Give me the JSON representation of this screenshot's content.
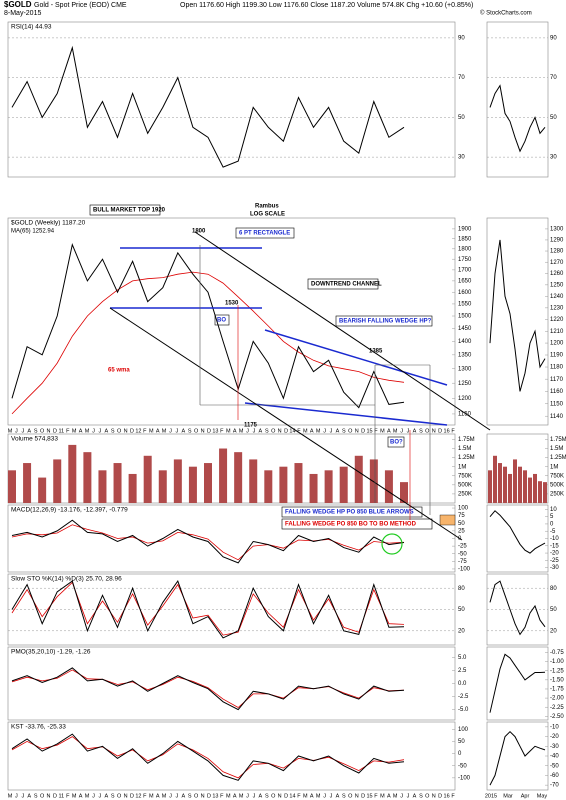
{
  "header": {
    "symbol": "$GOLD",
    "name": "Gold - Spot Price (EOD) CME",
    "date": "8-May-2015",
    "quote": "Open 1176.60  High 1199.30  Low 1176.60  Close 1187.20  Volume 574.8K  Chg +10.60 (+0.85%)",
    "credit": "© StockCharts.com"
  },
  "annotations": {
    "top": "BULL MARKET TOP 1920",
    "author": "Rambus",
    "scale": "LOG SCALE",
    "p1800": "1800",
    "rect": "6 PT RECTANGLE",
    "channel": "DOWNTREND CHANNEL",
    "p1530": "1530",
    "bo": "BO",
    "wedge": "BEARISH FALLING WEDGE HP?",
    "p1385": "1385",
    "wma": "65 wma",
    "p1175": "1175",
    "bo2": "BO?",
    "po1": "FALLING WEDGE HP PO 850 BLUE ARROWS",
    "po2": "FALLING WEDGE PO 850 BO TO BO METHOD"
  },
  "x_axis_labels": [
    "M",
    "J",
    "J",
    "A",
    "S",
    "O",
    "N",
    "D",
    "11",
    "F",
    "M",
    "A",
    "M",
    "J",
    "J",
    "A",
    "S",
    "O",
    "N",
    "D",
    "12",
    "F",
    "M",
    "A",
    "M",
    "J",
    "J",
    "A",
    "S",
    "O",
    "N",
    "D",
    "13",
    "F",
    "M",
    "A",
    "M",
    "J",
    "J",
    "A",
    "S",
    "O",
    "N",
    "D",
    "14",
    "F",
    "M",
    "A",
    "M",
    "J",
    "J",
    "A",
    "S",
    "O",
    "N",
    "D",
    "15",
    "F",
    "M",
    "A",
    "M",
    "J",
    "J",
    "A",
    "S",
    "O",
    "N",
    "D",
    "16",
    "F"
  ],
  "mini_x_labels": [
    "2015",
    "Mar",
    "Apr",
    "May"
  ],
  "chart_data": [
    {
      "type": "line",
      "label": "RSI(14) 44.93",
      "color": "#000",
      "ylim": [
        20,
        98
      ],
      "yticks": [
        90,
        70,
        50,
        30
      ],
      "grid": true,
      "values": [
        55,
        68,
        50,
        62,
        85,
        45,
        58,
        40,
        62,
        42,
        55,
        70,
        45,
        40,
        25,
        28,
        55,
        45,
        38,
        60,
        45,
        55,
        38,
        32,
        58,
        40,
        45
      ],
      "mini_ylim": [
        20,
        98
      ],
      "mini_yticks": [
        90,
        70,
        50,
        30
      ],
      "mini_values": [
        55,
        62,
        66,
        52,
        48,
        40,
        33,
        38,
        45,
        50,
        42,
        45
      ]
    },
    {
      "type": "line",
      "label": "$GOLD (Weekly) 1187.20",
      "ma_label": "MA(65) 1252.94",
      "color": "#000",
      "ma_color": "#d00",
      "log": true,
      "ylim": [
        1116,
        1957
      ],
      "yticks": [
        1150,
        1200,
        1250,
        1300,
        1350,
        1400,
        1450,
        1500,
        1550,
        1600,
        1650,
        1700,
        1750,
        1800,
        1850,
        1900
      ],
      "grid": false,
      "values": [
        1200,
        1380,
        1350,
        1500,
        1820,
        1650,
        1750,
        1600,
        1740,
        1560,
        1620,
        1780,
        1680,
        1600,
        1400,
        1230,
        1400,
        1320,
        1200,
        1380,
        1290,
        1330,
        1220,
        1170,
        1290,
        1180,
        1187
      ],
      "ma": [
        1150,
        1200,
        1250,
        1320,
        1420,
        1500,
        1560,
        1610,
        1650,
        1660,
        1665,
        1680,
        1690,
        1680,
        1640,
        1580,
        1520,
        1460,
        1400,
        1360,
        1330,
        1310,
        1300,
        1290,
        1270,
        1260,
        1252.94
      ],
      "mini_ylim": [
        1133,
        1310
      ],
      "mini_yticks": [
        1140,
        1150,
        1160,
        1170,
        1180,
        1190,
        1200,
        1210,
        1220,
        1230,
        1240,
        1250,
        1260,
        1270,
        1280,
        1290,
        1300
      ],
      "mini_values": [
        1200,
        1260,
        1290,
        1240,
        1225,
        1195,
        1160,
        1175,
        1200,
        1210,
        1180,
        1187
      ]
    },
    {
      "type": "bar",
      "label": "Volume 574,833",
      "color": "#b04a4a",
      "ylim": [
        0,
        1900000
      ],
      "yticks": [
        {
          "value": 1750000,
          "label": "1.75M"
        },
        {
          "value": 1500000,
          "label": "1.5M"
        },
        {
          "value": 1250000,
          "label": "1.25M"
        },
        {
          "value": 1000000,
          "label": "1M"
        },
        {
          "value": 750000,
          "label": "750K"
        },
        {
          "value": 500000,
          "label": "500K"
        },
        {
          "value": 250000,
          "label": "250K"
        }
      ],
      "grid": false,
      "values": [
        900000,
        1100000,
        700000,
        1200000,
        1600000,
        1400000,
        900000,
        1100000,
        800000,
        1300000,
        900000,
        1200000,
        1000000,
        1100000,
        1500000,
        1400000,
        1200000,
        900000,
        1000000,
        1100000,
        800000,
        900000,
        1000000,
        1300000,
        1200000,
        900000,
        574833
      ],
      "mini_ylim": [
        0,
        1900000
      ],
      "mini_yticks": [
        {
          "value": 1750000,
          "label": "1.75M"
        },
        {
          "value": 1500000,
          "label": "1.5M"
        },
        {
          "value": 1250000,
          "label": "1.25M"
        },
        {
          "value": 1000000,
          "label": "1M"
        },
        {
          "value": 750000,
          "label": "750K"
        },
        {
          "value": 500000,
          "label": "500K"
        },
        {
          "value": 250000,
          "label": "250K"
        }
      ],
      "mini_values": [
        900000,
        1300000,
        1100000,
        1000000,
        800000,
        1200000,
        1000000,
        900000,
        700000,
        800000,
        600000,
        574833
      ]
    },
    {
      "type": "line",
      "label": "MACD(12,26,9) -13.176, -12.397, -0.779",
      "color": "#000",
      "signal_color": "#d00",
      "ylim": [
        -110,
        110
      ],
      "yticks": [
        100,
        75,
        50,
        25,
        0,
        -25,
        -50,
        -75,
        -100
      ],
      "grid": false,
      "values": [
        10,
        20,
        5,
        25,
        60,
        20,
        15,
        -10,
        10,
        -25,
        0,
        30,
        5,
        -10,
        -60,
        -80,
        -10,
        -20,
        -40,
        10,
        -10,
        0,
        -30,
        -45,
        5,
        -20,
        -13.176
      ],
      "signal": [
        5,
        15,
        12,
        18,
        45,
        30,
        18,
        0,
        5,
        -15,
        -8,
        20,
        12,
        -2,
        -45,
        -70,
        -25,
        -20,
        -32,
        -5,
        -8,
        -3,
        -22,
        -38,
        -10,
        -15,
        -12.397
      ],
      "mini_ylim": [
        -33,
        13
      ],
      "mini_yticks": [
        10,
        5,
        0,
        -5,
        -10,
        -15,
        -20,
        -25,
        -30
      ],
      "mini_values": [
        5,
        9,
        6,
        2,
        -2,
        -8,
        -14,
        -18,
        -20,
        -17,
        -15,
        -13.176
      ]
    },
    {
      "type": "line",
      "label": "Slow STO %K(14) %D(3) 25.70, 28.96",
      "color": "#000",
      "signal_color": "#d00",
      "ylim": [
        0,
        100
      ],
      "yticks": [
        80,
        50,
        20
      ],
      "grid": true,
      "values": [
        50,
        85,
        30,
        75,
        90,
        20,
        70,
        25,
        80,
        20,
        60,
        90,
        30,
        40,
        10,
        20,
        80,
        40,
        20,
        85,
        30,
        70,
        20,
        15,
        85,
        25,
        25.7
      ],
      "signal": [
        45,
        78,
        40,
        68,
        88,
        30,
        62,
        32,
        72,
        28,
        55,
        85,
        38,
        42,
        14,
        18,
        72,
        45,
        25,
        78,
        35,
        65,
        25,
        18,
        78,
        30,
        28.96
      ],
      "mini_ylim": [
        0,
        100
      ],
      "mini_yticks": [
        80,
        50,
        20
      ],
      "mini_values": [
        60,
        85,
        90,
        70,
        50,
        30,
        15,
        25,
        45,
        55,
        35,
        25.7
      ]
    },
    {
      "type": "line",
      "label": "PMO(35,20,10) -1.29, -1.26",
      "color": "#000",
      "signal_color": "#d00",
      "ylim": [
        -7,
        7
      ],
      "yticks": [
        {
          "value": 5,
          "label": "5.0"
        },
        {
          "value": 2.5,
          "label": "2.5"
        },
        {
          "value": 0,
          "label": "0.0"
        },
        {
          "value": -2.5,
          "label": "-2.5"
        },
        {
          "value": -5,
          "label": "-5.0"
        }
      ],
      "grid": false,
      "values": [
        0.5,
        1.5,
        0.2,
        1.2,
        3.0,
        0.5,
        0.8,
        -0.5,
        0.5,
        -1.5,
        0,
        1.5,
        0.2,
        -1,
        -3.5,
        -5,
        -1.5,
        -2,
        -3,
        -0.5,
        -1,
        -0.5,
        -2,
        -3,
        -0.5,
        -1.5,
        -1.29
      ],
      "signal": [
        0.3,
        1.2,
        0.5,
        1.0,
        2.6,
        0.9,
        0.8,
        -0.2,
        0.3,
        -1.2,
        -0.2,
        1.2,
        0.4,
        -0.8,
        -3,
        -4.6,
        -2,
        -2,
        -2.8,
        -0.8,
        -1,
        -0.6,
        -1.8,
        -2.8,
        -0.8,
        -1.4,
        -1.26
      ],
      "mini_ylim": [
        -2.6,
        -0.6
      ],
      "mini_yticks": [
        {
          "value": -0.75,
          "label": "-0.75"
        },
        {
          "value": -1,
          "label": "-1.00"
        },
        {
          "value": -1.25,
          "label": "-1.25"
        },
        {
          "value": -1.5,
          "label": "-1.50"
        },
        {
          "value": -1.75,
          "label": "-1.75"
        },
        {
          "value": -2,
          "label": "-2.00"
        },
        {
          "value": -2.25,
          "label": "-2.25"
        },
        {
          "value": -2.5,
          "label": "-2.50"
        }
      ],
      "mini_values": [
        -2.4,
        -1.8,
        -1.2,
        -0.8,
        -0.9,
        -1.1,
        -1.3,
        -1.5,
        -1.4,
        -1.3,
        -1.3,
        -1.29
      ]
    },
    {
      "type": "line",
      "label": "KST -33.76, -25.33",
      "color": "#000",
      "signal_color": "#d00",
      "ylim": [
        -150,
        130
      ],
      "yticks": [
        100,
        50,
        0,
        -50,
        -100
      ],
      "grid": false,
      "values": [
        20,
        60,
        10,
        40,
        80,
        10,
        30,
        -20,
        20,
        -40,
        0,
        50,
        10,
        -30,
        -90,
        -110,
        -30,
        -40,
        -70,
        -10,
        -30,
        -10,
        -50,
        -80,
        -20,
        -40,
        -33.76
      ],
      "signal": [
        15,
        50,
        20,
        35,
        70,
        20,
        28,
        -10,
        15,
        -30,
        -5,
        40,
        15,
        -20,
        -75,
        -100,
        -45,
        -40,
        -60,
        -20,
        -28,
        -15,
        -42,
        -70,
        -30,
        -35,
        -25.33
      ],
      "mini_ylim": [
        -75,
        -5
      ],
      "mini_yticks": [
        -10,
        -20,
        -30,
        -40,
        -50,
        -60,
        -70
      ],
      "mini_values": [
        -70,
        -60,
        -40,
        -20,
        -15,
        -20,
        -30,
        -40,
        -35,
        -30,
        -32,
        -33.76
      ]
    }
  ]
}
